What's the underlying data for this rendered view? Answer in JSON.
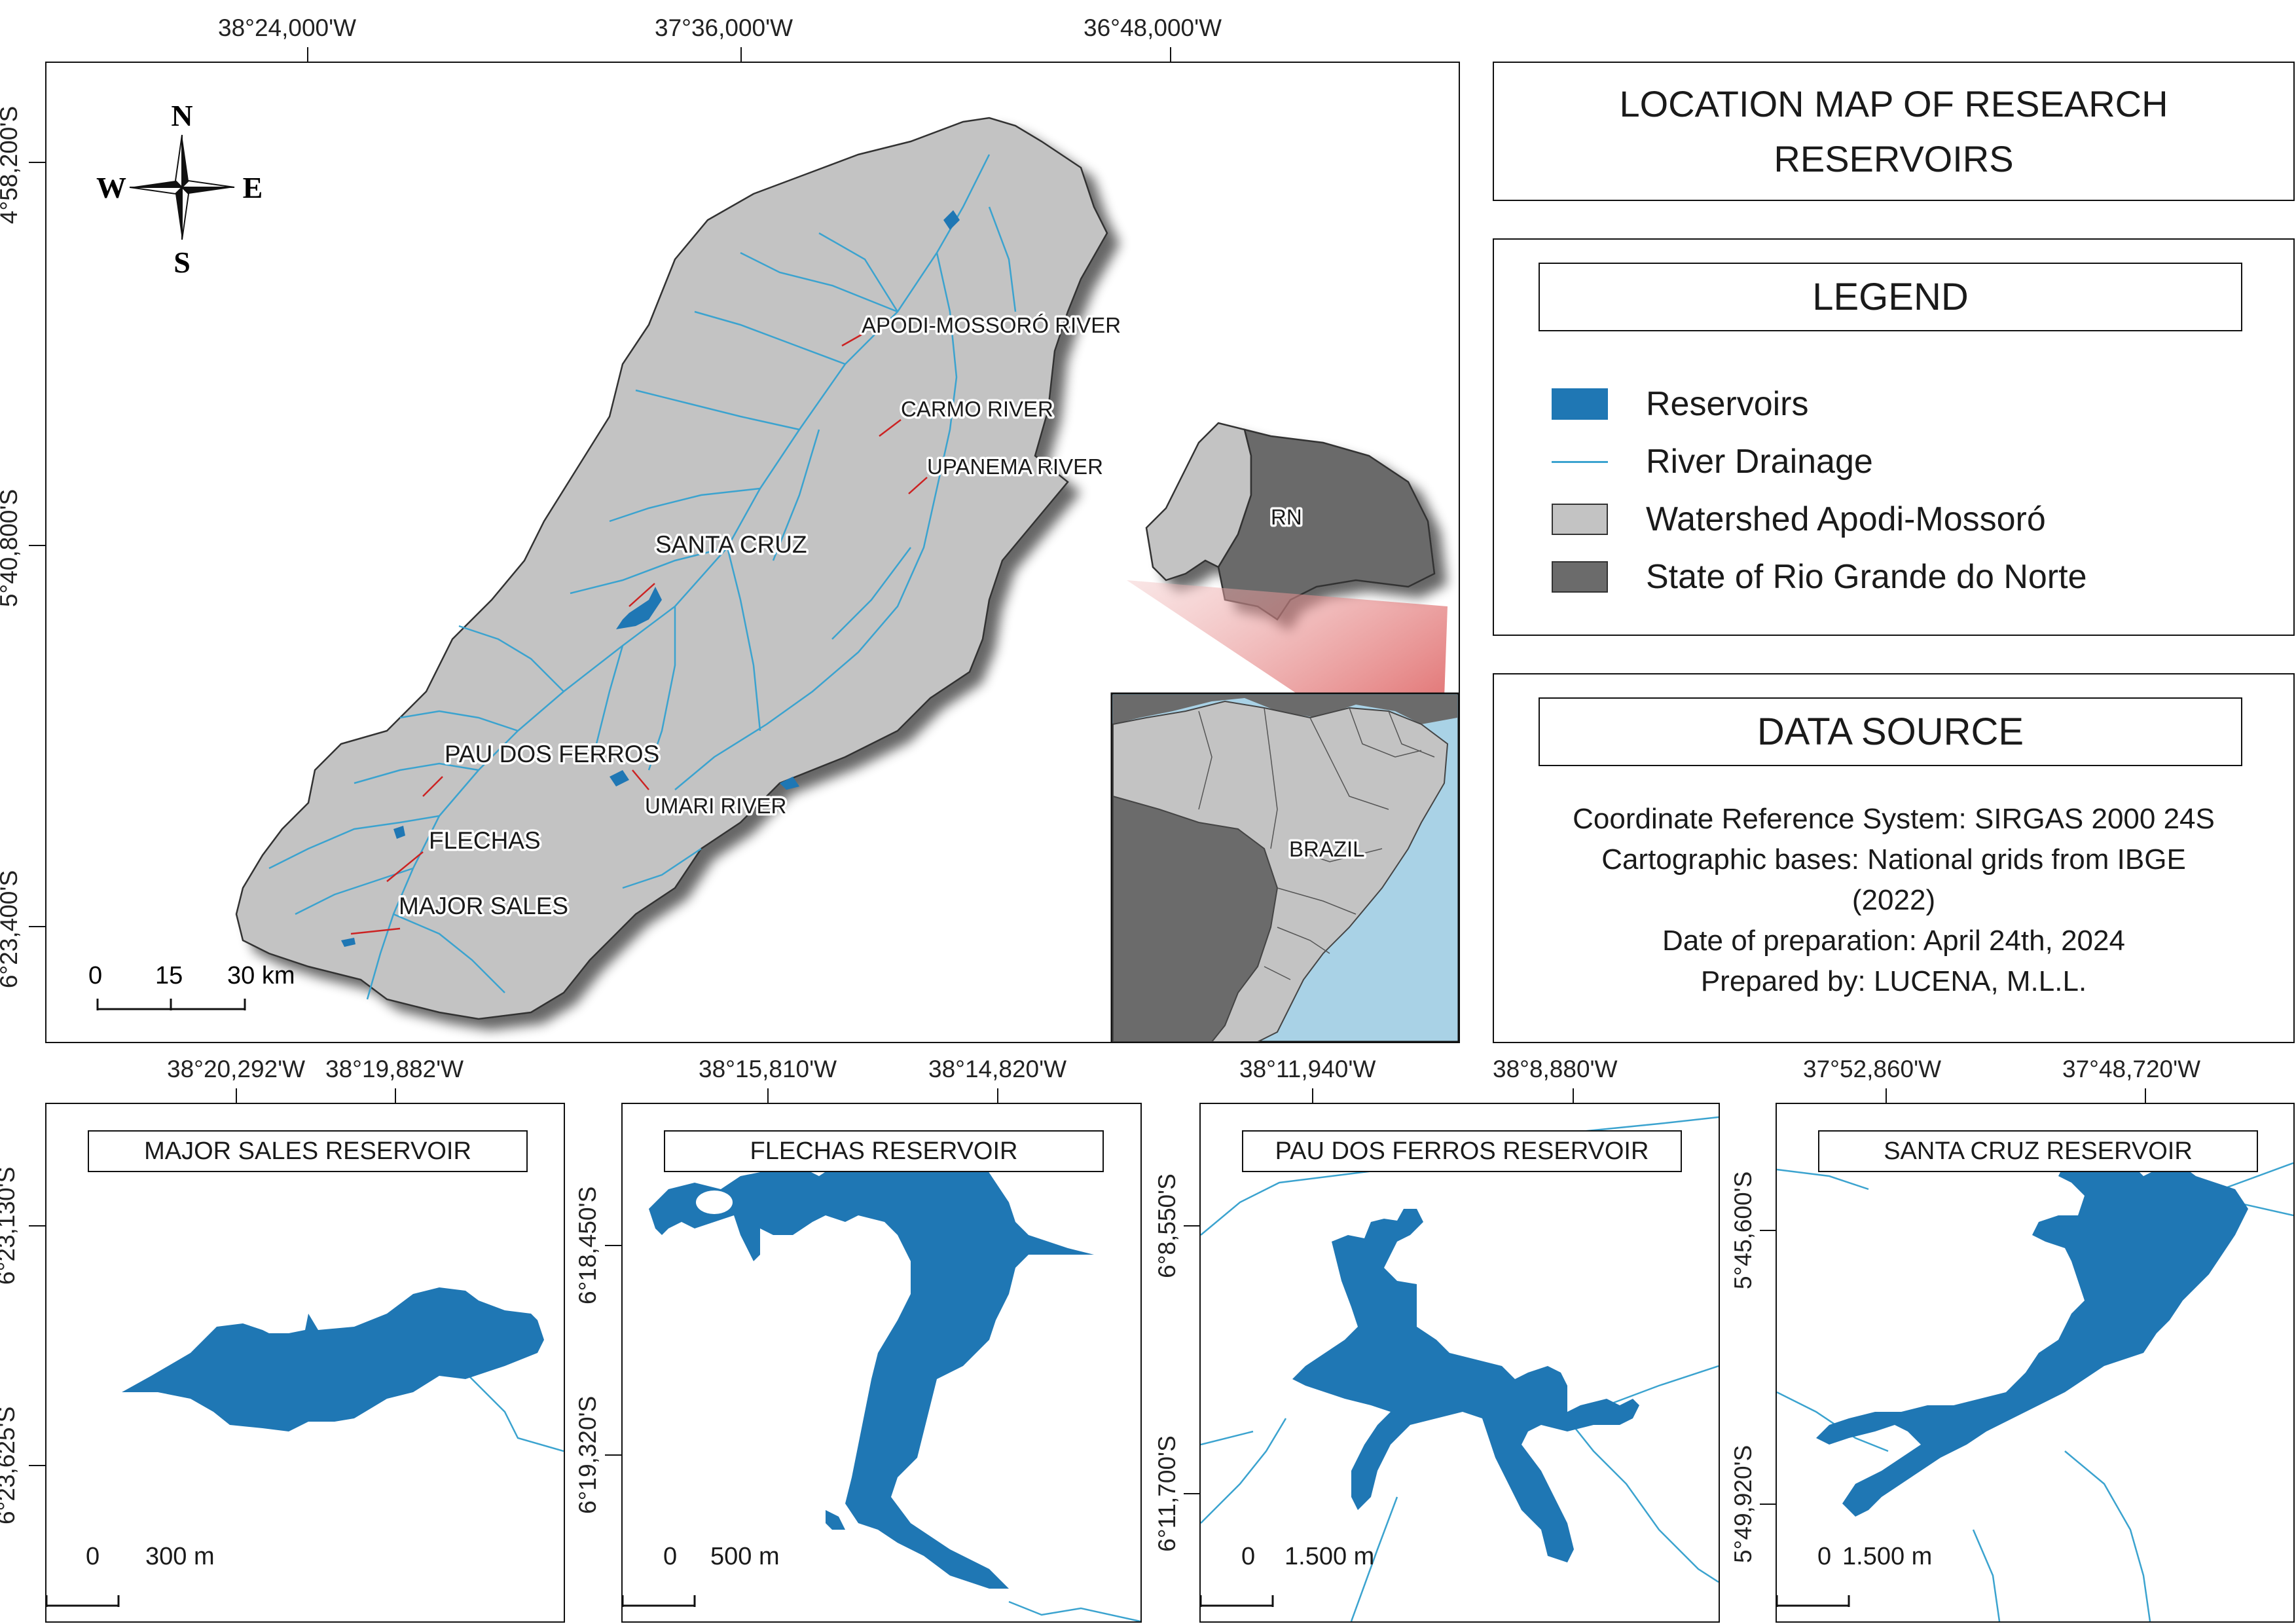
{
  "main_map": {
    "top_coords": [
      "38°24,000'W",
      "37°36,000'W",
      "36°48,000'W"
    ],
    "left_coords": [
      "4°58,200'S",
      "5°40,800'S",
      "6°23,400'S"
    ],
    "compass": {
      "n": "N",
      "s": "S",
      "e": "E",
      "w": "W"
    },
    "labels": {
      "apodi": "APODI-MOSSORÓ RIVER",
      "carmo": "CARMO RIVER",
      "upanema": "UPANEMA RIVER",
      "santa_cruz": "SANTA CRUZ",
      "pau_dos_ferros": "PAU DOS FERROS",
      "umari": "UMARI RIVER",
      "flechas": "FLECHAS",
      "major_sales": "MAJOR SALES",
      "rn": "RN",
      "brazil": "BRAZIL"
    },
    "scale": {
      "ticks": [
        "0",
        "15",
        "30 km"
      ]
    }
  },
  "title": {
    "line1": "LOCATION MAP OF RESEARCH",
    "line2": "RESERVOIRS"
  },
  "legend": {
    "heading": "LEGEND",
    "items": [
      {
        "label": "Reservoirs",
        "color": "#1f77b4"
      },
      {
        "label": "River Drainage",
        "color": "#3ba3cf"
      },
      {
        "label": "Watershed Apodi-Mossoró",
        "color": "#c3c3c3"
      },
      {
        "label": "State of Rio Grande do Norte",
        "color": "#6b6b6b"
      }
    ]
  },
  "data_source": {
    "heading": "DATA SOURCE",
    "lines": [
      "Coordinate Reference System: SIRGAS 2000 24S",
      "Cartographic bases: National grids from IBGE",
      "(2022)",
      "Date of preparation: April 24th, 2024",
      "Prepared by: LUCENA, M.L.L."
    ]
  },
  "insets": [
    {
      "title": "MAJOR SALES RESERVOIR",
      "top_coords": [
        "38°20,292'W",
        "38°19,882'W"
      ],
      "left_coords": [
        "6°23,130'S",
        "6°23,625'S"
      ],
      "scale": [
        "0",
        "300 m"
      ]
    },
    {
      "title": "FLECHAS RESERVOIR",
      "top_coords": [
        "38°15,810'W",
        "38°14,820'W"
      ],
      "left_coords": [
        "6°18,450'S",
        "6°19,320'S"
      ],
      "scale": [
        "0",
        "500 m"
      ]
    },
    {
      "title": "PAU DOS FERROS RESERVOIR",
      "top_coords": [
        "38°11,940'W",
        "38°8,880'W"
      ],
      "left_coords": [
        "6°8,550'S",
        "6°11,700'S"
      ],
      "scale": [
        "0",
        "1.500 m"
      ]
    },
    {
      "title": "SANTA CRUZ RESERVOIR",
      "top_coords": [
        "37°52,860'W",
        "37°48,720'W"
      ],
      "left_coords": [
        "5°45,600'S",
        "5°49,920'S"
      ],
      "scale": [
        "0",
        "1.500 m"
      ]
    }
  ],
  "colors": {
    "reservoir": "#1f77b4",
    "river": "#3ba3cf",
    "watershed": "#c3c3c3",
    "state": "#6b6b6b",
    "ocean": "#a9d2e6",
    "leader": "#cc2222"
  }
}
